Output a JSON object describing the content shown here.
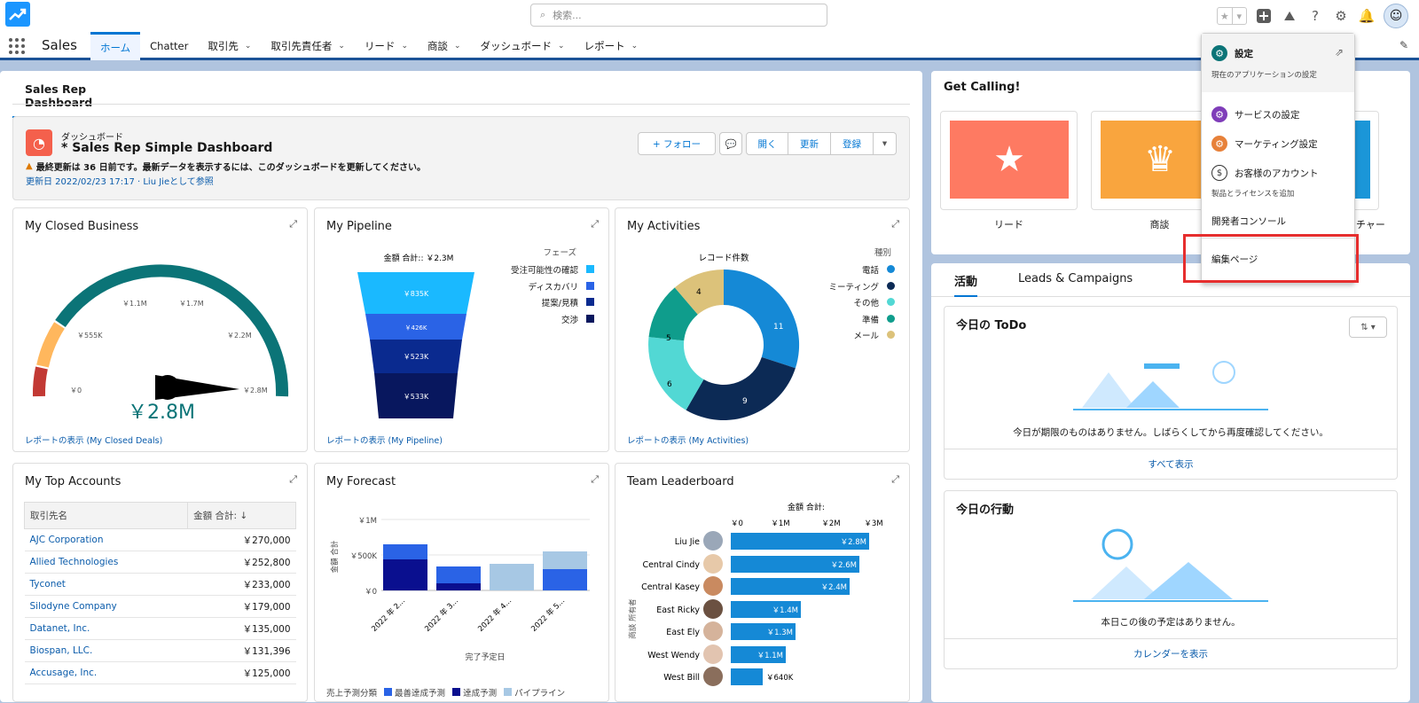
{
  "topbar": {
    "search_placeholder": "検索..."
  },
  "nav": {
    "app_name": "Sales",
    "tabs": [
      {
        "label": "ホーム"
      },
      {
        "label": "Chatter"
      },
      {
        "label": "取引先"
      },
      {
        "label": "取引先責任者"
      },
      {
        "label": "リード"
      },
      {
        "label": "商談"
      },
      {
        "label": "ダッシュボード"
      },
      {
        "label": "レポート"
      }
    ]
  },
  "dashboard": {
    "tab_label": "Sales Rep Dashboard",
    "subtitle": "ダッシュボード",
    "title": "* Sales Rep Simple Dashboard",
    "warning": "最終更新は 36 日前です。最新データを表示するには、このダッシュボードを更新してください。",
    "updated": "更新日 2022/02/23 17:17 · Liu Jieとして参照",
    "buttons": {
      "follow": "+ フォロー",
      "open": "開く",
      "refresh": "更新",
      "subscribe": "登録"
    }
  },
  "closed_business": {
    "title": "My Closed Business",
    "value": "￥2.8M",
    "ticks": [
      "￥0",
      "￥555K",
      "￥1.1M",
      "￥1.7M",
      "￥2.2M",
      "￥2.8M"
    ],
    "link": "レポートの表示 (My Closed Deals)"
  },
  "pipeline": {
    "title": "My Pipeline",
    "sum_label": "金額 合計:: ￥2.3M",
    "legend_title": "フェーズ",
    "legend": [
      {
        "label": "受注可能性の確認",
        "color": "#1ab9ff"
      },
      {
        "label": "ディスカバリ",
        "color": "#2a63e6"
      },
      {
        "label": "提案/見積",
        "color": "#0a2a8f"
      },
      {
        "label": "交渉",
        "color": "#08175e"
      }
    ],
    "segments": [
      "￥835K",
      "￥426K",
      "￥523K",
      "￥533K"
    ],
    "link": "レポートの表示 (My Pipeline)"
  },
  "activities": {
    "title": "My Activities",
    "chart_label": "レコード件数",
    "legend_title": "種別",
    "legend": [
      {
        "label": "電話",
        "color": "#1589d6"
      },
      {
        "label": "ミーティング",
        "color": "#0c2a55"
      },
      {
        "label": "その他",
        "color": "#52d8d4"
      },
      {
        "label": "準備",
        "color": "#0f9d8c"
      },
      {
        "label": "メール",
        "color": "#dcc27a"
      }
    ],
    "values": [
      "11",
      "9",
      "6",
      "5",
      "4"
    ],
    "link": "レポートの表示 (My Activities)"
  },
  "top_accounts": {
    "title": "My Top Accounts",
    "col1": "取引先名",
    "col2": "金額 合計: ↓",
    "rows": [
      {
        "name": "AJC Corporation",
        "amount": "￥270,000"
      },
      {
        "name": "Allied Technologies",
        "amount": "￥252,800"
      },
      {
        "name": "Tyconet",
        "amount": "￥233,000"
      },
      {
        "name": "Silodyne Company",
        "amount": "￥179,000"
      },
      {
        "name": "Datanet, Inc.",
        "amount": "￥135,000"
      },
      {
        "name": "Biospan, LLC.",
        "amount": "￥131,396"
      },
      {
        "name": "Accusage, Inc.",
        "amount": "￥125,000"
      }
    ]
  },
  "forecast": {
    "title": "My Forecast",
    "ylabel": "金額 合計",
    "yticks": [
      "￥1M",
      "￥500K",
      "￥0"
    ],
    "xticks": [
      "2022 年 2...",
      "2022 年 3...",
      "2022 年 4...",
      "2022 年 5..."
    ],
    "xlabel": "完了予定日",
    "legend_title": "売上予測分類",
    "legend": [
      {
        "label": "最善達成予測",
        "color": "#2a63e6"
      },
      {
        "label": "達成予測",
        "color": "#0a0f8f"
      },
      {
        "label": "パイプライン",
        "color": "#a7c8e4"
      }
    ]
  },
  "leaderboard": {
    "title": "Team Leaderboard",
    "sum_label": "金額 合計:",
    "ylabel": "商談 所有者",
    "xticks": [
      "￥0",
      "￥1M",
      "￥2M",
      "￥3M"
    ],
    "rows": [
      {
        "name": "Liu Jie",
        "value": "￥2.8M"
      },
      {
        "name": "Central Cindy",
        "value": "￥2.6M"
      },
      {
        "name": "Central Kasey",
        "value": "￥2.4M"
      },
      {
        "name": "East Ricky",
        "value": "￥1.4M"
      },
      {
        "name": "East Ely",
        "value": "￥1.3M"
      },
      {
        "name": "West Wendy",
        "value": "￥1.1M"
      },
      {
        "name": "West Bill",
        "value": "￥640K"
      }
    ]
  },
  "get_calling": {
    "title": "Get Calling!",
    "tiles": [
      {
        "label": "リード"
      },
      {
        "label": "商談"
      },
      {
        "label": "ンチャー"
      }
    ]
  },
  "activity_panel": {
    "tab_activity": "活動",
    "tab_leads": "Leads & Campaigns",
    "todo_title": "今日の ToDo",
    "todo_msg": "今日が期限のものはありません。しばらくしてから再度確認してください。",
    "todo_link": "すべて表示",
    "events_title": "今日の行動",
    "events_msg": "本日この後の予定はありません。",
    "events_link": "カレンダーを表示"
  },
  "setup_menu": {
    "setup": "設定",
    "setup_sub": "現在のアプリケーションの設定",
    "service": "サービスの設定",
    "marketing": "マーケティング設定",
    "account": "お客様のアカウント",
    "account_sub": "製品とライセンスを追加",
    "devconsole": "開発者コンソール",
    "edit_page": "編集ページ"
  }
}
